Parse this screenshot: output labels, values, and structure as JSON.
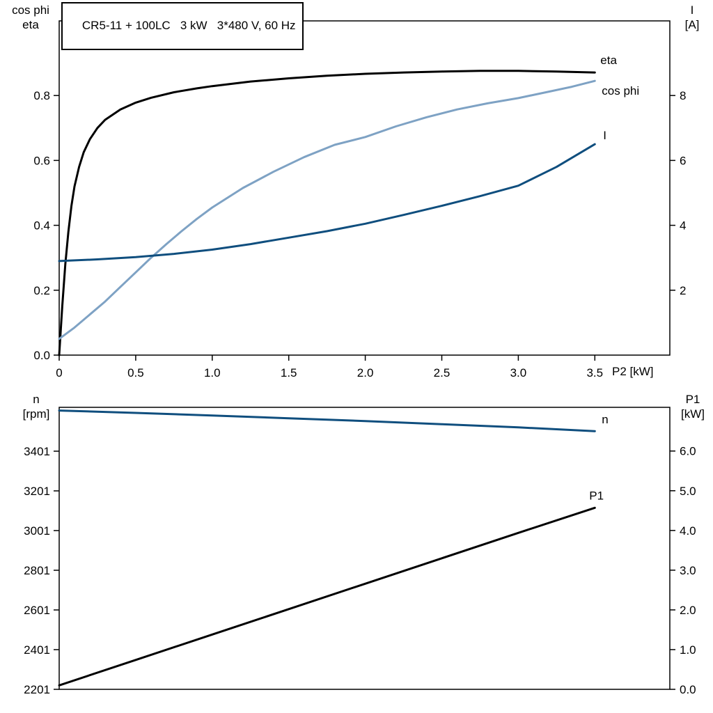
{
  "title": "CR5-11 + 100LC   3 kW   3*480 V, 60 Hz",
  "colors": {
    "black": "#000000",
    "light_blue": "#7ea2c4",
    "dark_blue": "#0f4e7e",
    "background": "#ffffff"
  },
  "axis_corner_labels": {
    "top_left": [
      "cos phi",
      "eta"
    ],
    "top_right": [
      "I",
      "[A]"
    ],
    "bottom_left": [
      "n",
      "[rpm]"
    ],
    "bottom_right": [
      "P1",
      "[kW]"
    ]
  },
  "chart_data": [
    {
      "type": "line",
      "title": "CR5-11 + 100LC   3 kW   3*480 V, 60 Hz",
      "xlabel": "P2 [kW]",
      "ylabel_left": "cos phi / eta",
      "ylabel_right": "I [A]",
      "xlim": [
        0,
        3.99
      ],
      "ylim_left": [
        0,
        1.03
      ],
      "ylim_right": [
        0,
        10.3
      ],
      "grid": false,
      "legend_position": "end-of-line-labels",
      "x_ticks": {
        "values": [
          0,
          0.5,
          1.0,
          1.5,
          2.0,
          2.5,
          3.0,
          3.5
        ],
        "labels": [
          "0",
          "0.5",
          "1.0",
          "1.5",
          "2.0",
          "2.5",
          "3.0",
          "3.5"
        ]
      },
      "y_ticks_left": {
        "values": [
          0.0,
          0.2,
          0.4,
          0.6,
          0.8
        ],
        "labels": [
          "0.0",
          "0.2",
          "0.4",
          "0.6",
          "0.8"
        ]
      },
      "y_ticks_right": {
        "values": [
          2,
          4,
          6,
          8
        ],
        "labels": [
          "2",
          "4",
          "6",
          "8"
        ]
      },
      "series": [
        {
          "name": "eta",
          "axis": "left",
          "color": "#000000",
          "label_offset": [
            8,
            -12
          ],
          "x": [
            0,
            0.02,
            0.04,
            0.06,
            0.08,
            0.1,
            0.13,
            0.16,
            0.2,
            0.25,
            0.3,
            0.4,
            0.5,
            0.6,
            0.75,
            0.9,
            1.0,
            1.25,
            1.5,
            1.75,
            2.0,
            2.25,
            2.5,
            2.75,
            3.0,
            3.25,
            3.5
          ],
          "y": [
            0,
            0.15,
            0.28,
            0.38,
            0.46,
            0.52,
            0.58,
            0.625,
            0.665,
            0.7,
            0.725,
            0.757,
            0.778,
            0.793,
            0.81,
            0.822,
            0.829,
            0.843,
            0.853,
            0.861,
            0.867,
            0.871,
            0.874,
            0.876,
            0.876,
            0.874,
            0.871
          ]
        },
        {
          "name": "cos phi",
          "axis": "left",
          "color": "#7ea2c4",
          "label_offset": [
            10,
            20
          ],
          "x": [
            0,
            0.1,
            0.2,
            0.3,
            0.4,
            0.5,
            0.6,
            0.7,
            0.8,
            0.9,
            1.0,
            1.2,
            1.4,
            1.6,
            1.8,
            2.0,
            2.2,
            2.4,
            2.6,
            2.8,
            3.0,
            3.2,
            3.35,
            3.5
          ],
          "y": [
            0.05,
            0.085,
            0.125,
            0.165,
            0.21,
            0.255,
            0.3,
            0.342,
            0.382,
            0.42,
            0.455,
            0.515,
            0.565,
            0.61,
            0.648,
            0.672,
            0.705,
            0.733,
            0.757,
            0.776,
            0.792,
            0.812,
            0.827,
            0.845
          ]
        },
        {
          "name": "I",
          "axis": "right",
          "color": "#0f4e7e",
          "label_offset": [
            12,
            -7
          ],
          "x": [
            0,
            0.25,
            0.5,
            0.75,
            1.0,
            1.25,
            1.5,
            1.75,
            2.0,
            2.25,
            2.5,
            2.75,
            3.0,
            3.25,
            3.5
          ],
          "y": [
            2.9,
            2.95,
            3.02,
            3.12,
            3.25,
            3.42,
            3.62,
            3.82,
            4.05,
            4.32,
            4.6,
            4.9,
            5.22,
            5.8,
            6.5
          ]
        }
      ]
    },
    {
      "type": "line",
      "title": "",
      "xlabel": "",
      "ylabel_left": "n [rpm]",
      "ylabel_right": "P1 [kW]",
      "xlim": [
        0,
        3.99
      ],
      "ylim_left": [
        2201,
        3622
      ],
      "ylim_right": [
        0,
        7.1
      ],
      "grid": false,
      "legend_position": "end-of-line-labels",
      "x_ticks": {
        "values": [],
        "labels": []
      },
      "y_ticks_left": {
        "values": [
          2201,
          2401,
          2601,
          2801,
          3001,
          3201,
          3401
        ],
        "labels": [
          "2201",
          "2401",
          "2601",
          "2801",
          "3001",
          "3201",
          "3401"
        ]
      },
      "y_ticks_right": {
        "values": [
          0,
          1,
          2,
          3,
          4,
          5,
          6
        ],
        "labels": [
          "0.0",
          "1.0",
          "2.0",
          "3.0",
          "4.0",
          "5.0",
          "6.0"
        ]
      },
      "series": [
        {
          "name": "n",
          "axis": "left",
          "color": "#0f4e7e",
          "label_offset": [
            10,
            -11
          ],
          "x": [
            0,
            0.5,
            1.0,
            1.5,
            2.0,
            2.5,
            3.0,
            3.5
          ],
          "y": [
            3606,
            3594,
            3581,
            3567,
            3553,
            3537,
            3521,
            3502
          ]
        },
        {
          "name": "P1",
          "axis": "right",
          "color": "#000000",
          "label_offset": [
            -8,
            -12
          ],
          "x": [
            0,
            0.5,
            1.0,
            1.5,
            2.0,
            2.5,
            3.0,
            3.5
          ],
          "y": [
            0.1,
            0.74,
            1.38,
            2.02,
            2.66,
            3.3,
            3.94,
            4.57
          ]
        }
      ]
    }
  ]
}
